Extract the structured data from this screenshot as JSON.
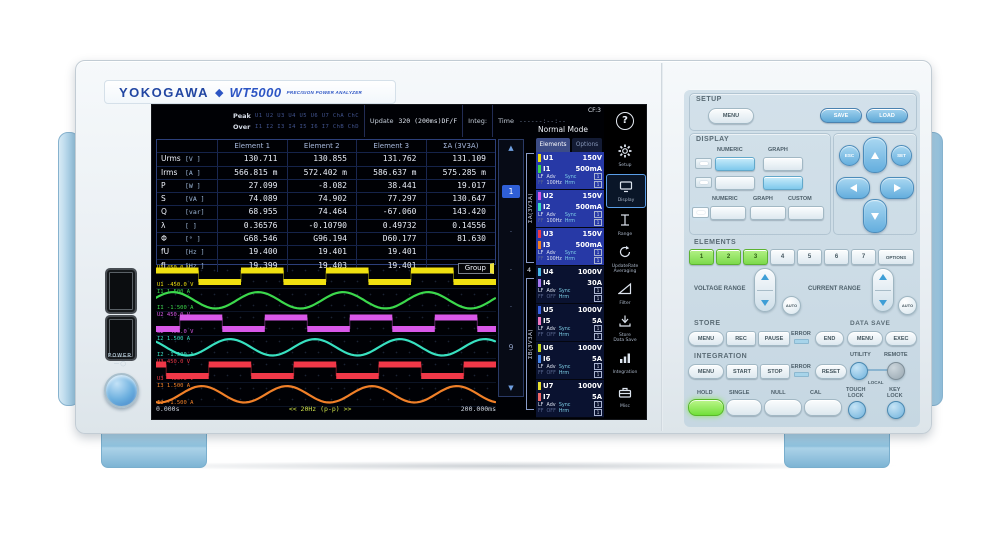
{
  "device": {
    "brand": "YOKOGAWA",
    "diamond": "◆",
    "model": "WT5000",
    "model_subtitle": "PRECISION POWER ANALYZER",
    "power_label": "POWER",
    "power_symbols": "— ◯"
  },
  "screen": {
    "statusbar": {
      "peak_label": "Peak",
      "over_label": "Over",
      "peak_channels": "U1 U2 U3 U4 U5 U6 U7 ChA ChC",
      "over_channels": "I1 I2 I3 I4 I5 I6 I7 ChB ChD",
      "update_label": "Update",
      "update_value": "320 (200ms)DF/F",
      "integ_label": "Integ:",
      "time_label": "Time",
      "time_value": "------:--:--",
      "mode": "Normal Mode",
      "cf": "CF:3",
      "help_glyph": "?"
    },
    "table": {
      "headers": [
        "",
        "Element 1",
        "Element 2",
        "Element 3",
        "ΣA (3V3A)"
      ],
      "rows": [
        {
          "name": "Urms",
          "unit": "[V  ]",
          "values": [
            "130.711",
            "130.855",
            "131.762",
            "131.109"
          ]
        },
        {
          "name": "Irms",
          "unit": "[A  ]",
          "values": [
            "566.815 m",
            "572.402 m",
            "586.637 m",
            "575.285 m"
          ]
        },
        {
          "name": "P",
          "unit": "[W  ]",
          "values": [
            "27.099",
            "-8.082",
            "38.441",
            "19.017"
          ]
        },
        {
          "name": "S",
          "unit": "[VA ]",
          "values": [
            "74.089",
            "74.902",
            "77.297",
            "130.647"
          ]
        },
        {
          "name": "Q",
          "unit": "[var]",
          "values": [
            "68.955",
            "74.464",
            "-67.060",
            "143.420"
          ]
        },
        {
          "name": "λ",
          "unit": "[   ]",
          "values": [
            "0.36576",
            "-0.10790",
            "0.49732",
            "0.14556"
          ]
        },
        {
          "name": "Φ",
          "unit": "[°  ]",
          "values": [
            "G68.546",
            "G96.194",
            "D60.177",
            "81.630"
          ]
        },
        {
          "name": "fU",
          "unit": "[Hz ]",
          "values": [
            "19.400",
            "19.401",
            "19.401",
            ""
          ]
        },
        {
          "name": "fI",
          "unit": "[Hz ]",
          "values": [
            "19.399",
            "19.403",
            "19.401",
            ""
          ]
        }
      ]
    },
    "pager": {
      "up": "▲",
      "current": "1",
      "dots": [
        "·",
        "·",
        "·"
      ],
      "last": "9",
      "down": "▼"
    },
    "sidebar": {
      "tab_elements": "Elements",
      "tab_options": "Options",
      "group_a": "ΣA(3V3A)",
      "group_b": "ΣB(3V3A)",
      "element4_marker": "4",
      "row_labels": {
        "lf": "LF",
        "ff": "FF",
        "adv": "Adv",
        "sync": "Sync",
        "hrm": "Hrm"
      },
      "badge": "1",
      "elements": [
        {
          "num": "1",
          "u": "U1",
          "u_range": "150V",
          "u_color": "#f0e010",
          "i": "I1",
          "i_range": "500mA",
          "i_color": "#3cd84c",
          "adv": "100Hz",
          "active": true
        },
        {
          "num": "2",
          "u": "U2",
          "u_range": "150V",
          "u_color": "#d858e8",
          "i": "I2",
          "i_range": "500mA",
          "i_color": "#38e0c0",
          "adv": "100Hz",
          "active": true
        },
        {
          "num": "3",
          "u": "U3",
          "u_range": "150V",
          "u_color": "#f03848",
          "i": "I3",
          "i_range": "500mA",
          "i_color": "#f08028",
          "adv": "100Hz",
          "active": true
        },
        {
          "num": "4",
          "u": "U4",
          "u_range": "1000V",
          "u_color": "#48b8e8",
          "i": "I4",
          "i_range": "30A",
          "i_color": "#a878f0",
          "adv": "OFF",
          "active": false
        },
        {
          "num": "5",
          "u": "U5",
          "u_range": "1000V",
          "u_color": "#3860e0",
          "i": "I5",
          "i_range": "5A",
          "i_color": "#f078c0",
          "adv": "OFF",
          "active": false
        },
        {
          "num": "6",
          "u": "U6",
          "u_range": "1000V",
          "u_color": "#c4d820",
          "i": "I6",
          "i_range": "5A",
          "i_color": "#4484e8",
          "adv": "OFF",
          "active": false
        },
        {
          "num": "7",
          "u": "U7",
          "u_range": "1000V",
          "u_color": "#e8e030",
          "i": "I7",
          "i_range": "5A",
          "i_color": "#f06868",
          "adv": "OFF",
          "active": false
        }
      ]
    },
    "iconbar": [
      {
        "id": "setup",
        "label": "Setup",
        "selected": false
      },
      {
        "id": "display",
        "label": "Display",
        "selected": true
      },
      {
        "id": "range",
        "label": "Range",
        "selected": false
      },
      {
        "id": "update",
        "label": "UpdateRate\nAveraging",
        "selected": false
      },
      {
        "id": "filter",
        "label": "Filter",
        "selected": false
      },
      {
        "id": "store",
        "label": "Store\nData Save",
        "selected": false
      },
      {
        "id": "integration",
        "label": "Integration",
        "selected": false
      },
      {
        "id": "misc",
        "label": "Misc",
        "selected": false
      }
    ],
    "waveform": {
      "group_label": "Group",
      "time_start": "0.000s",
      "time_center": "<< 20Hz (p-p) >>",
      "time_end": "200.000ms",
      "traces": [
        {
          "ch": "U1",
          "top": "450.0 V",
          "bottom": "-450.0 V",
          "color": "#f0e010",
          "type": "square",
          "phase": 0.0
        },
        {
          "ch": "I1",
          "top": "1.500 A",
          "bottom": "-1.500 A",
          "color": "#3cd84c",
          "type": "sine",
          "phase": 0.05
        },
        {
          "ch": "U2",
          "top": "450.0 V",
          "bottom": "-450.0 V",
          "color": "#d858e8",
          "type": "square",
          "phase": 0.72
        },
        {
          "ch": "I2",
          "top": "1.500 A",
          "bottom": "-1.500 A",
          "color": "#38e0c0",
          "type": "sine",
          "phase": 0.38
        },
        {
          "ch": "U3",
          "top": "450.0 V",
          "bottom": "-450.0 V",
          "color": "#f03848",
          "type": "square",
          "phase": 0.38
        },
        {
          "ch": "I3",
          "top": "1.500 A",
          "bottom": "-1.500 A",
          "color": "#f08028",
          "type": "sine",
          "phase": 0.71
        }
      ]
    }
  },
  "panel": {
    "setup": {
      "label": "SETUP",
      "menu": "MENU",
      "save": "SAVE",
      "load": "LOAD"
    },
    "display": {
      "label": "DISPLAY",
      "numeric": "NUMERIC",
      "graph": "GRAPH",
      "custom": "CUSTOM"
    },
    "nav": {
      "esc": "ESC",
      "set": "SET"
    },
    "elements": {
      "label": "ELEMENTS",
      "keys": [
        {
          "t": "1",
          "lit": true
        },
        {
          "t": "2",
          "lit": true
        },
        {
          "t": "3",
          "lit": true
        },
        {
          "t": "4",
          "lit": false
        },
        {
          "t": "5",
          "lit": false
        },
        {
          "t": "6",
          "lit": false
        },
        {
          "t": "7",
          "lit": false
        }
      ],
      "options": "OPTIONS"
    },
    "voltage_range": "VOLTAGE RANGE",
    "current_range": "CURRENT RANGE",
    "auto": "AUTO",
    "store": {
      "label": "STORE",
      "menu": "MENU",
      "rec": "REC",
      "pause": "PAUSE",
      "error": "ERROR",
      "end": "END"
    },
    "data_save": {
      "label": "DATA SAVE",
      "menu": "MENU",
      "exec": "EXEC"
    },
    "integration": {
      "label": "INTEGRATION",
      "menu": "MENU",
      "start": "START",
      "stop": "STOP",
      "error": "ERROR",
      "reset": "RESET"
    },
    "utility": "UTILITY",
    "remote": "REMOTE",
    "local": "LOCAL",
    "hold": "HOLD",
    "single": "SINGLE",
    "null": "NULL",
    "cal": "CAL",
    "touch_lock": "TOUCH\nLOCK",
    "key_lock": "KEY\nLOCK"
  }
}
